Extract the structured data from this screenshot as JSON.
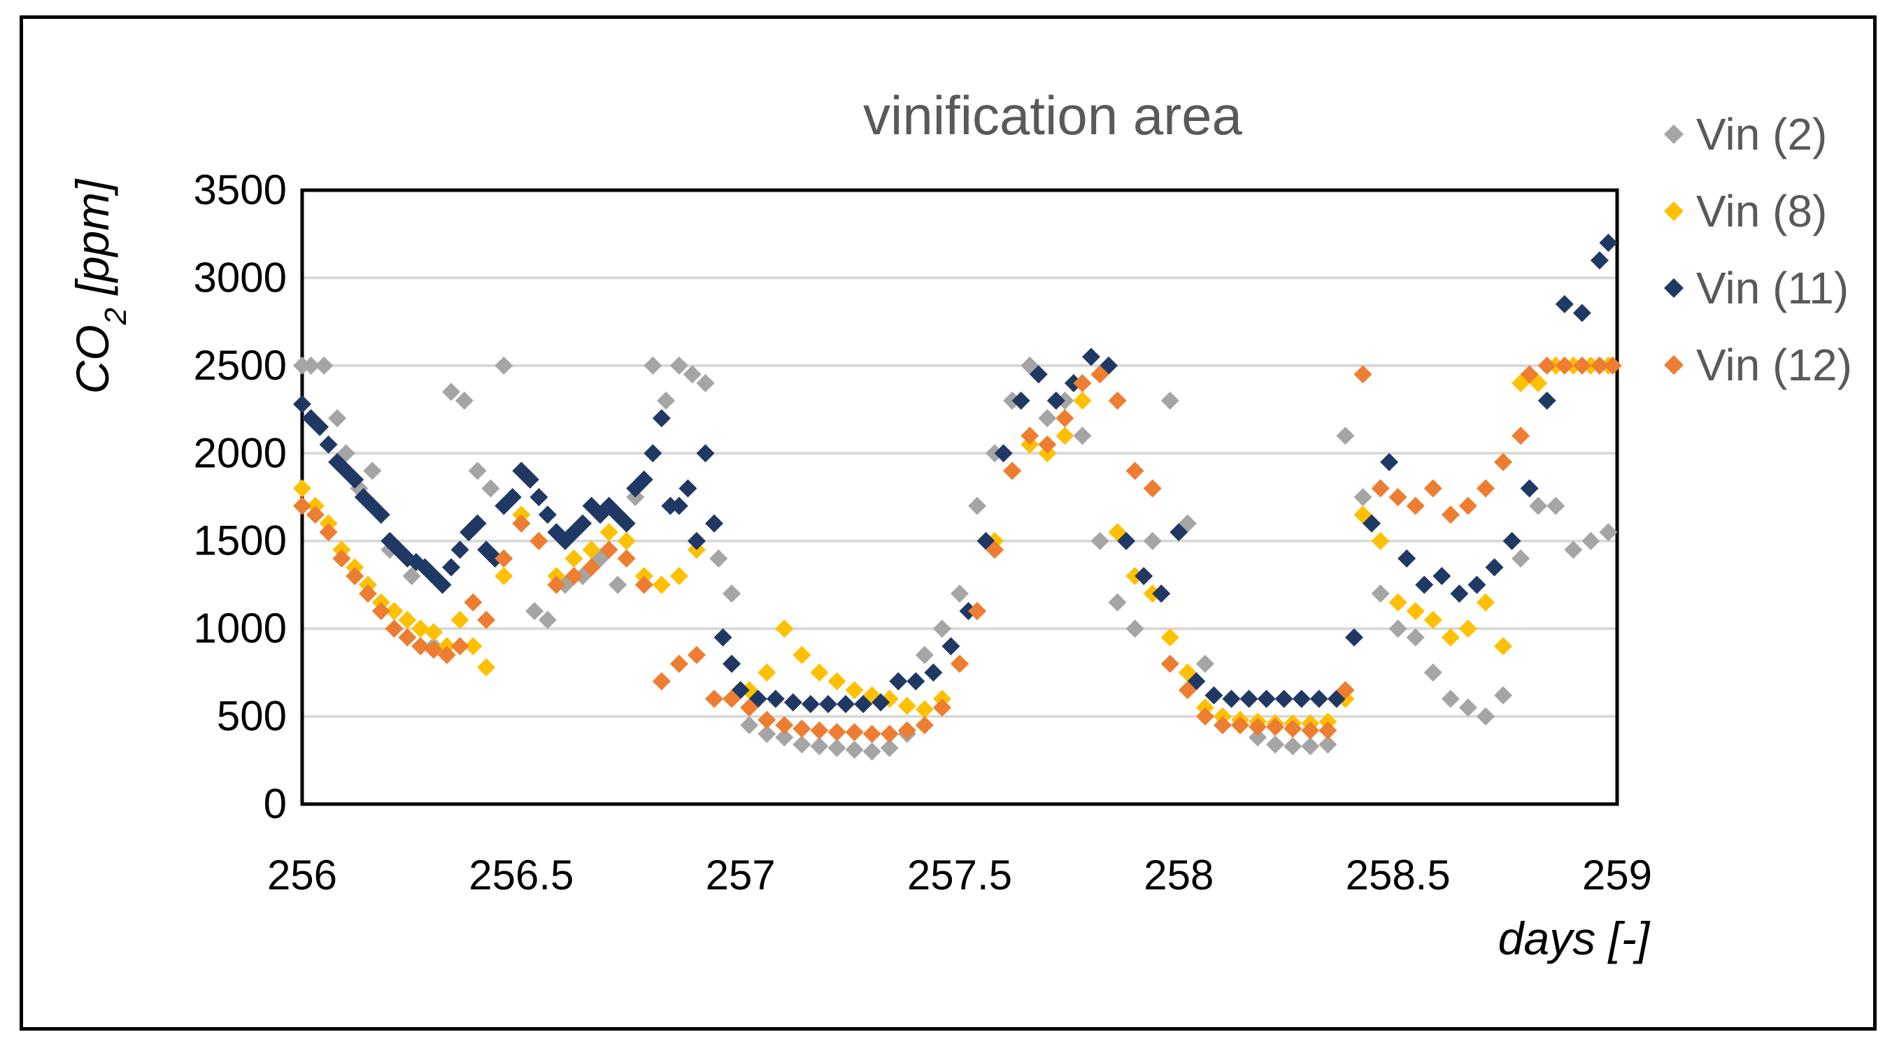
{
  "chart_data": {
    "type": "scatter",
    "title": "vinification area",
    "xlabel": "days [-]",
    "ylabel_main": "CO",
    "ylabel_sub": "2",
    "ylabel_rest": " [ppm]",
    "xlim": [
      256,
      259
    ],
    "ylim": [
      0,
      3500
    ],
    "xticks": [
      256,
      256.5,
      257,
      257.5,
      258,
      258.5,
      259
    ],
    "xtick_labels": [
      "256",
      "256.5",
      "257",
      "257.5",
      "258",
      "258.5",
      "259"
    ],
    "yticks": [
      0,
      500,
      1000,
      1500,
      2000,
      2500,
      3000,
      3500
    ],
    "ytick_labels": [
      "0",
      "500",
      "1000",
      "1500",
      "2000",
      "2500",
      "3000",
      "3500"
    ],
    "grid": "horizontal",
    "legend_position": "right",
    "marker": "diamond",
    "series": [
      {
        "name": "Vin (2)",
        "color": "#a5a5a5",
        "x": [
          256.0,
          256.02,
          256.05,
          256.08,
          256.1,
          256.13,
          256.16,
          256.2,
          256.25,
          256.3,
          256.34,
          256.37,
          256.4,
          256.43,
          256.46,
          256.5,
          256.53,
          256.56,
          256.6,
          256.64,
          256.68,
          256.72,
          256.76,
          256.8,
          256.83,
          256.86,
          256.89,
          256.92,
          256.95,
          256.98,
          257.02,
          257.06,
          257.1,
          257.14,
          257.18,
          257.22,
          257.26,
          257.3,
          257.34,
          257.38,
          257.42,
          257.46,
          257.5,
          257.54,
          257.58,
          257.62,
          257.66,
          257.7,
          257.74,
          257.78,
          257.82,
          257.86,
          257.9,
          257.94,
          257.98,
          258.02,
          258.06,
          258.1,
          258.14,
          258.18,
          258.22,
          258.26,
          258.3,
          258.34,
          258.38,
          258.42,
          258.46,
          258.5,
          258.54,
          258.58,
          258.62,
          258.66,
          258.7,
          258.74,
          258.78,
          258.82,
          258.86,
          258.9,
          258.94,
          258.98
        ],
        "y": [
          2500,
          2500,
          2500,
          2200,
          2000,
          1800,
          1900,
          1450,
          1300,
          900,
          2350,
          2300,
          1900,
          1800,
          2500,
          1600,
          1100,
          1050,
          1250,
          1300,
          1400,
          1250,
          1750,
          2500,
          2300,
          2500,
          2450,
          2400,
          1400,
          1200,
          450,
          400,
          380,
          340,
          330,
          320,
          310,
          300,
          320,
          400,
          850,
          1000,
          1200,
          1700,
          2000,
          2300,
          2500,
          2200,
          2300,
          2100,
          1500,
          1150,
          1000,
          1500,
          2300,
          1600,
          800,
          500,
          450,
          380,
          340,
          330,
          330,
          340,
          2100,
          1750,
          1200,
          1000,
          950,
          750,
          600,
          550,
          500,
          620,
          1400,
          1700,
          1700,
          1450,
          1500,
          1550
        ]
      },
      {
        "name": "Vin (8)",
        "color": "#ffc000",
        "x": [
          256.0,
          256.03,
          256.06,
          256.09,
          256.12,
          256.15,
          256.18,
          256.21,
          256.24,
          256.27,
          256.3,
          256.33,
          256.36,
          256.39,
          256.42,
          256.46,
          256.5,
          256.54,
          256.58,
          256.62,
          256.66,
          256.7,
          256.74,
          256.78,
          256.82,
          256.86,
          256.9,
          256.94,
          256.98,
          257.02,
          257.06,
          257.1,
          257.14,
          257.18,
          257.22,
          257.26,
          257.3,
          257.34,
          257.38,
          257.42,
          257.46,
          257.5,
          257.54,
          257.58,
          257.62,
          257.66,
          257.7,
          257.74,
          257.78,
          257.82,
          257.86,
          257.9,
          257.94,
          257.98,
          258.02,
          258.06,
          258.1,
          258.14,
          258.18,
          258.22,
          258.26,
          258.3,
          258.34,
          258.38,
          258.42,
          258.46,
          258.5,
          258.54,
          258.58,
          258.62,
          258.66,
          258.7,
          258.74,
          258.78,
          258.82,
          258.86,
          258.9,
          258.94,
          258.98
        ],
        "y": [
          1800,
          1700,
          1600,
          1450,
          1350,
          1250,
          1150,
          1100,
          1050,
          1000,
          980,
          900,
          1050,
          900,
          780,
          1300,
          1650,
          1500,
          1300,
          1400,
          1450,
          1550,
          1500,
          1300,
          1250,
          1300,
          1450,
          1600,
          800,
          650,
          750,
          1000,
          850,
          750,
          700,
          650,
          620,
          600,
          560,
          540,
          600,
          800,
          1100,
          1500,
          1900,
          2050,
          2000,
          2100,
          2300,
          2450,
          1550,
          1300,
          1200,
          950,
          750,
          550,
          500,
          480,
          470,
          460,
          460,
          460,
          470,
          600,
          1650,
          1500,
          1150,
          1100,
          1050,
          950,
          1000,
          1150,
          900,
          2400,
          2400,
          2500,
          2500,
          2500,
          2500
        ]
      },
      {
        "name": "Vin (11)",
        "color": "#203864",
        "x": [
          256.0,
          256.02,
          256.04,
          256.06,
          256.08,
          256.1,
          256.12,
          256.14,
          256.16,
          256.18,
          256.2,
          256.22,
          256.24,
          256.26,
          256.28,
          256.3,
          256.32,
          256.34,
          256.36,
          256.38,
          256.4,
          256.42,
          256.44,
          256.46,
          256.48,
          256.5,
          256.52,
          256.54,
          256.56,
          256.58,
          256.6,
          256.62,
          256.64,
          256.66,
          256.68,
          256.7,
          256.72,
          256.74,
          256.76,
          256.78,
          256.8,
          256.82,
          256.84,
          256.86,
          256.88,
          256.9,
          256.92,
          256.94,
          256.96,
          256.98,
          257.0,
          257.04,
          257.08,
          257.12,
          257.16,
          257.2,
          257.24,
          257.28,
          257.32,
          257.36,
          257.4,
          257.44,
          257.48,
          257.52,
          257.56,
          257.6,
          257.64,
          257.68,
          257.72,
          257.76,
          257.8,
          257.84,
          257.88,
          257.92,
          257.96,
          258.0,
          258.04,
          258.08,
          258.12,
          258.16,
          258.2,
          258.24,
          258.28,
          258.32,
          258.36,
          258.4,
          258.44,
          258.48,
          258.52,
          258.56,
          258.6,
          258.64,
          258.68,
          258.72,
          258.76,
          258.8,
          258.84,
          258.88,
          258.92,
          258.96,
          258.98
        ],
        "y": [
          2280,
          2200,
          2150,
          2050,
          1950,
          1900,
          1850,
          1750,
          1700,
          1650,
          1500,
          1450,
          1400,
          1380,
          1350,
          1300,
          1250,
          1350,
          1450,
          1550,
          1600,
          1450,
          1400,
          1700,
          1750,
          1900,
          1850,
          1750,
          1650,
          1550,
          1500,
          1550,
          1600,
          1700,
          1650,
          1700,
          1650,
          1600,
          1800,
          1850,
          2000,
          2200,
          1700,
          1700,
          1800,
          1500,
          2000,
          1600,
          950,
          800,
          650,
          600,
          600,
          580,
          570,
          570,
          570,
          570,
          580,
          700,
          700,
          750,
          900,
          1100,
          1500,
          2000,
          2300,
          2450,
          2300,
          2400,
          2550,
          2500,
          1500,
          1300,
          1200,
          1550,
          700,
          620,
          600,
          600,
          600,
          600,
          600,
          600,
          600,
          950,
          1600,
          1950,
          1400,
          1250,
          1300,
          1200,
          1250,
          1350,
          1500,
          1800,
          2300,
          2850,
          2800,
          3100,
          3200
        ]
      },
      {
        "name": "Vin (12)",
        "color": "#ed7d31",
        "x": [
          256.0,
          256.03,
          256.06,
          256.09,
          256.12,
          256.15,
          256.18,
          256.21,
          256.24,
          256.27,
          256.3,
          256.33,
          256.36,
          256.39,
          256.42,
          256.46,
          256.5,
          256.54,
          256.58,
          256.62,
          256.66,
          256.7,
          256.74,
          256.78,
          256.82,
          256.86,
          256.9,
          256.94,
          256.98,
          257.02,
          257.06,
          257.1,
          257.14,
          257.18,
          257.22,
          257.26,
          257.3,
          257.34,
          257.38,
          257.42,
          257.46,
          257.5,
          257.54,
          257.58,
          257.62,
          257.66,
          257.7,
          257.74,
          257.78,
          257.82,
          257.86,
          257.9,
          257.94,
          257.98,
          258.02,
          258.06,
          258.1,
          258.14,
          258.18,
          258.22,
          258.26,
          258.3,
          258.34,
          258.38,
          258.42,
          258.46,
          258.5,
          258.54,
          258.58,
          258.62,
          258.66,
          258.7,
          258.74,
          258.78,
          258.8,
          258.84,
          258.88,
          258.92,
          258.96,
          258.99
        ],
        "y": [
          1700,
          1650,
          1550,
          1400,
          1300,
          1200,
          1100,
          1000,
          950,
          900,
          880,
          850,
          900,
          1150,
          1050,
          1400,
          1600,
          1500,
          1250,
          1300,
          1350,
          1450,
          1400,
          1250,
          700,
          800,
          850,
          600,
          600,
          550,
          480,
          450,
          430,
          420,
          410,
          410,
          400,
          400,
          420,
          450,
          550,
          800,
          1100,
          1450,
          1900,
          2100,
          2050,
          2200,
          2400,
          2450,
          2300,
          1900,
          1800,
          800,
          650,
          500,
          450,
          450,
          440,
          440,
          430,
          420,
          420,
          650,
          2450,
          1800,
          1750,
          1700,
          1800,
          1650,
          1700,
          1800,
          1950,
          2100,
          2450,
          2500,
          2500,
          2500,
          2500,
          2500
        ]
      }
    ]
  }
}
